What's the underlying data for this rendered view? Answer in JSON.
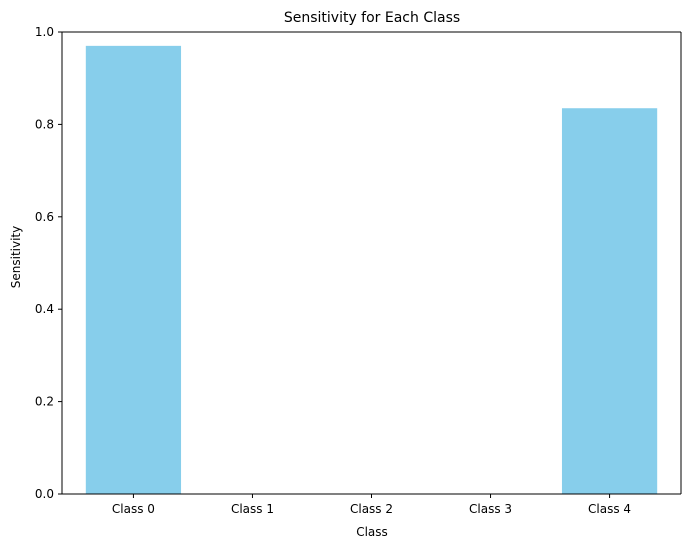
{
  "chart_data": {
    "type": "bar",
    "title": "Sensitivity for Each Class",
    "xlabel": "Class",
    "ylabel": "Sensitivity",
    "categories": [
      "Class 0",
      "Class 1",
      "Class 2",
      "Class 3",
      "Class 4"
    ],
    "values": [
      0.97,
      0.0,
      0.0,
      0.0,
      0.835
    ],
    "ylim": [
      0.0,
      1.0
    ],
    "yticks": [
      0.0,
      0.2,
      0.4,
      0.6,
      0.8,
      1.0
    ],
    "ytick_labels": [
      "0.0",
      "0.2",
      "0.4",
      "0.6",
      "0.8",
      "1.0"
    ],
    "bar_color": "#87CEEB",
    "grid": false,
    "legend": "none"
  }
}
